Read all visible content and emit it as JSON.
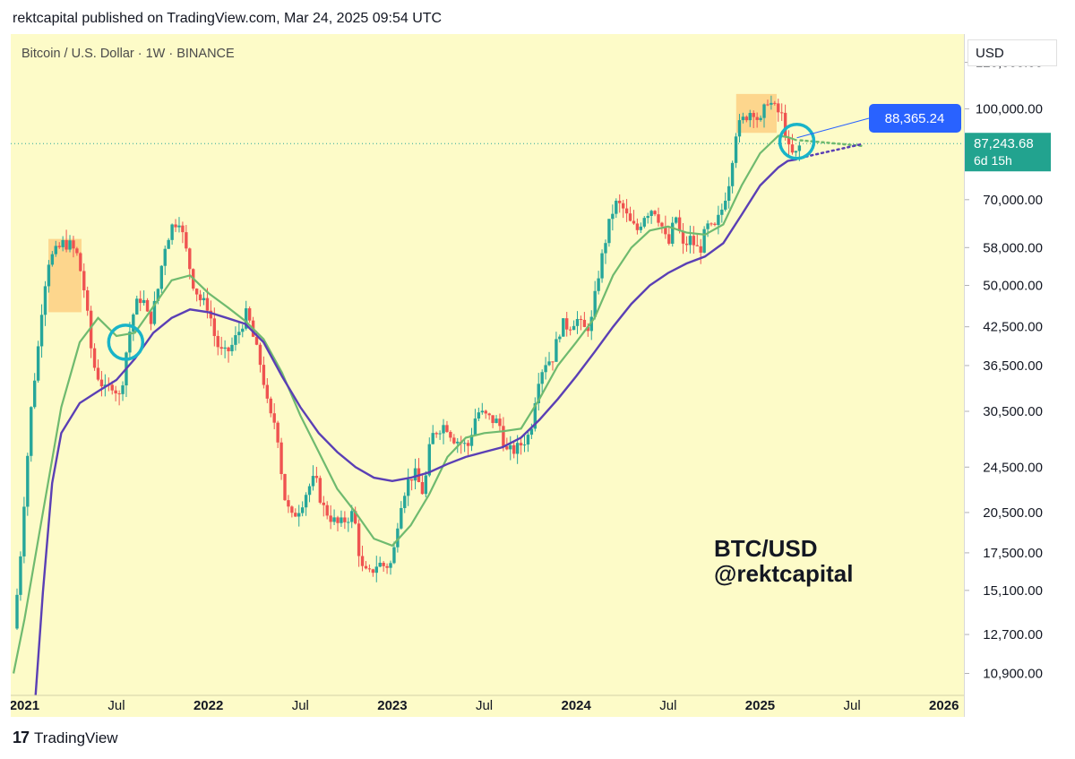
{
  "header": {
    "published": "rektcapital published on TradingView.com, Mar 24, 2025 09:54 UTC"
  },
  "symbol_info": "Bitcoin / U.S. Dollar · 1W · BINANCE",
  "watermark": {
    "line1": "BTC/USD",
    "line2": "@rektcapital"
  },
  "currency_button": "USD",
  "footer": {
    "brand": "TradingView",
    "logo": "17"
  },
  "colors": {
    "background": "#fdfbc8",
    "up": "#26a69a",
    "down": "#ef5350",
    "ma_green": "#6fba6f",
    "ma_purple": "#5a3fb5",
    "highlight_box": "#fcc97a",
    "circle": "#19b4c8",
    "target_label": "#2962ff",
    "price_label": "#22a38f"
  },
  "chart_data": {
    "type": "candlestick",
    "title": "Bitcoin / U.S. Dollar · 1W · BINANCE",
    "y_scale": "log",
    "ylim": [
      10000,
      125000
    ],
    "x_ticks": [
      {
        "label": "2021",
        "bold": true,
        "t": 2021.0
      },
      {
        "label": "Jul",
        "bold": false,
        "t": 2021.5
      },
      {
        "label": "2022",
        "bold": true,
        "t": 2022.0
      },
      {
        "label": "Jul",
        "bold": false,
        "t": 2022.5
      },
      {
        "label": "2023",
        "bold": true,
        "t": 2023.0
      },
      {
        "label": "Jul",
        "bold": false,
        "t": 2023.5
      },
      {
        "label": "2024",
        "bold": true,
        "t": 2024.0
      },
      {
        "label": "Jul",
        "bold": false,
        "t": 2024.5
      },
      {
        "label": "2025",
        "bold": true,
        "t": 2025.0
      },
      {
        "label": "Jul",
        "bold": false,
        "t": 2025.5
      },
      {
        "label": "2026",
        "bold": true,
        "t": 2026.0
      }
    ],
    "y_ticks": [
      {
        "label": "120,000.00",
        "v": 120000
      },
      {
        "label": "100,000.00",
        "v": 100000
      },
      {
        "label": "70,000.00",
        "v": 70000
      },
      {
        "label": "58,000.00",
        "v": 58000
      },
      {
        "label": "50,000.00",
        "v": 50000
      },
      {
        "label": "42,500.00",
        "v": 42500
      },
      {
        "label": "36,500.00",
        "v": 36500
      },
      {
        "label": "30,500.00",
        "v": 30500
      },
      {
        "label": "24,500.00",
        "v": 24500
      },
      {
        "label": "20,500.00",
        "v": 20500
      },
      {
        "label": "17,500.00",
        "v": 17500
      },
      {
        "label": "15,100.00",
        "v": 15100
      },
      {
        "label": "12,700.00",
        "v": 12700
      },
      {
        "label": "10,900.00",
        "v": 10900
      }
    ],
    "price_path": [
      [
        2020.94,
        13000
      ],
      [
        2020.97,
        16000
      ],
      [
        2021.0,
        22000
      ],
      [
        2021.04,
        32000
      ],
      [
        2021.07,
        38000
      ],
      [
        2021.1,
        48000
      ],
      [
        2021.13,
        55000
      ],
      [
        2021.17,
        57000
      ],
      [
        2021.21,
        59000
      ],
      [
        2021.25,
        58500
      ],
      [
        2021.29,
        56000
      ],
      [
        2021.33,
        48000
      ],
      [
        2021.37,
        37000
      ],
      [
        2021.4,
        35000
      ],
      [
        2021.44,
        33000
      ],
      [
        2021.48,
        34000
      ],
      [
        2021.52,
        32000
      ],
      [
        2021.56,
        40000
      ],
      [
        2021.6,
        46000
      ],
      [
        2021.64,
        48000
      ],
      [
        2021.68,
        43000
      ],
      [
        2021.72,
        48000
      ],
      [
        2021.76,
        58000
      ],
      [
        2021.8,
        63000
      ],
      [
        2021.84,
        65000
      ],
      [
        2021.88,
        57000
      ],
      [
        2021.92,
        50000
      ],
      [
        2021.96,
        47000
      ],
      [
        2022.0,
        46000
      ],
      [
        2022.04,
        40000
      ],
      [
        2022.08,
        38000
      ],
      [
        2022.12,
        39000
      ],
      [
        2022.17,
        42000
      ],
      [
        2022.21,
        45000
      ],
      [
        2022.25,
        40000
      ],
      [
        2022.29,
        36000
      ],
      [
        2022.33,
        30000
      ],
      [
        2022.37,
        29000
      ],
      [
        2022.41,
        22000
      ],
      [
        2022.45,
        20000
      ],
      [
        2022.5,
        21000
      ],
      [
        2022.54,
        22500
      ],
      [
        2022.58,
        23500
      ],
      [
        2022.62,
        21000
      ],
      [
        2022.67,
        20000
      ],
      [
        2022.71,
        19500
      ],
      [
        2022.75,
        20000
      ],
      [
        2022.79,
        20500
      ],
      [
        2022.83,
        16500
      ],
      [
        2022.87,
        16000
      ],
      [
        2022.92,
        16800
      ],
      [
        2022.96,
        16600
      ],
      [
        2023.0,
        16800
      ],
      [
        2023.04,
        21000
      ],
      [
        2023.08,
        23000
      ],
      [
        2023.12,
        24000
      ],
      [
        2023.17,
        22000
      ],
      [
        2023.21,
        27500
      ],
      [
        2023.25,
        28500
      ],
      [
        2023.29,
        29000
      ],
      [
        2023.33,
        27500
      ],
      [
        2023.37,
        27000
      ],
      [
        2023.41,
        26500
      ],
      [
        2023.46,
        30500
      ],
      [
        2023.5,
        30000
      ],
      [
        2023.54,
        29500
      ],
      [
        2023.58,
        29200
      ],
      [
        2023.62,
        26000
      ],
      [
        2023.67,
        26200
      ],
      [
        2023.71,
        27000
      ],
      [
        2023.75,
        28000
      ],
      [
        2023.79,
        34500
      ],
      [
        2023.83,
        37000
      ],
      [
        2023.87,
        37500
      ],
      [
        2023.92,
        43000
      ],
      [
        2023.96,
        42500
      ],
      [
        2024.0,
        44000
      ],
      [
        2024.04,
        42000
      ],
      [
        2024.08,
        43000
      ],
      [
        2024.12,
        52000
      ],
      [
        2024.17,
        62000
      ],
      [
        2024.21,
        69000
      ],
      [
        2024.25,
        68000
      ],
      [
        2024.29,
        64000
      ],
      [
        2024.33,
        62000
      ],
      [
        2024.37,
        66000
      ],
      [
        2024.42,
        68000
      ],
      [
        2024.46,
        64000
      ],
      [
        2024.5,
        58000
      ],
      [
        2024.54,
        66000
      ],
      [
        2024.58,
        58000
      ],
      [
        2024.62,
        60000
      ],
      [
        2024.67,
        57000
      ],
      [
        2024.71,
        63000
      ],
      [
        2024.75,
        62000
      ],
      [
        2024.79,
        67000
      ],
      [
        2024.83,
        75000
      ],
      [
        2024.87,
        92000
      ],
      [
        2024.92,
        97000
      ],
      [
        2024.96,
        100000
      ],
      [
        2025.0,
        94000
      ],
      [
        2025.04,
        104000
      ],
      [
        2025.08,
        100000
      ],
      [
        2025.12,
        97000
      ],
      [
        2025.16,
        84000
      ],
      [
        2025.19,
        83000
      ],
      [
        2025.21,
        86000
      ],
      [
        2025.23,
        87243
      ]
    ],
    "ma_green_path": [
      [
        2020.94,
        10900
      ],
      [
        2021.0,
        13500
      ],
      [
        2021.1,
        20500
      ],
      [
        2021.2,
        31000
      ],
      [
        2021.3,
        40000
      ],
      [
        2021.4,
        44000
      ],
      [
        2021.5,
        41000
      ],
      [
        2021.6,
        41500
      ],
      [
        2021.7,
        46000
      ],
      [
        2021.8,
        51000
      ],
      [
        2021.9,
        52000
      ],
      [
        2022.0,
        48500
      ],
      [
        2022.1,
        46000
      ],
      [
        2022.2,
        43500
      ],
      [
        2022.3,
        40500
      ],
      [
        2022.4,
        35500
      ],
      [
        2022.5,
        30000
      ],
      [
        2022.6,
        26000
      ],
      [
        2022.7,
        22500
      ],
      [
        2022.8,
        20500
      ],
      [
        2022.9,
        18500
      ],
      [
        2023.0,
        18000
      ],
      [
        2023.1,
        19500
      ],
      [
        2023.2,
        22000
      ],
      [
        2023.3,
        25500
      ],
      [
        2023.4,
        27500
      ],
      [
        2023.5,
        28000
      ],
      [
        2023.6,
        28200
      ],
      [
        2023.7,
        28500
      ],
      [
        2023.8,
        32000
      ],
      [
        2023.9,
        36500
      ],
      [
        2024.0,
        40000
      ],
      [
        2024.1,
        44000
      ],
      [
        2024.2,
        52000
      ],
      [
        2024.3,
        58000
      ],
      [
        2024.4,
        62000
      ],
      [
        2024.5,
        63000
      ],
      [
        2024.6,
        61500
      ],
      [
        2024.7,
        61000
      ],
      [
        2024.8,
        63500
      ],
      [
        2024.9,
        74000
      ],
      [
        2025.0,
        84000
      ],
      [
        2025.1,
        90000
      ],
      [
        2025.15,
        89500
      ],
      [
        2025.2,
        88365
      ]
    ],
    "ma_purple_path": [
      [
        2021.06,
        10000
      ],
      [
        2021.1,
        15000
      ],
      [
        2021.15,
        23000
      ],
      [
        2021.2,
        28000
      ],
      [
        2021.3,
        31500
      ],
      [
        2021.4,
        33000
      ],
      [
        2021.5,
        34500
      ],
      [
        2021.6,
        37500
      ],
      [
        2021.7,
        41500
      ],
      [
        2021.8,
        44000
      ],
      [
        2021.9,
        45500
      ],
      [
        2022.0,
        45000
      ],
      [
        2022.1,
        44000
      ],
      [
        2022.2,
        43000
      ],
      [
        2022.3,
        40000
      ],
      [
        2022.4,
        35000
      ],
      [
        2022.5,
        31000
      ],
      [
        2022.6,
        28000
      ],
      [
        2022.7,
        26000
      ],
      [
        2022.8,
        24500
      ],
      [
        2022.9,
        23500
      ],
      [
        2023.0,
        23200
      ],
      [
        2023.1,
        23500
      ],
      [
        2023.2,
        24000
      ],
      [
        2023.3,
        24800
      ],
      [
        2023.4,
        25500
      ],
      [
        2023.5,
        26000
      ],
      [
        2023.6,
        26500
      ],
      [
        2023.7,
        27500
      ],
      [
        2023.8,
        29500
      ],
      [
        2023.9,
        32000
      ],
      [
        2024.0,
        35000
      ],
      [
        2024.1,
        38500
      ],
      [
        2024.2,
        42500
      ],
      [
        2024.3,
        46500
      ],
      [
        2024.4,
        50000
      ],
      [
        2024.5,
        52500
      ],
      [
        2024.6,
        54500
      ],
      [
        2024.7,
        56000
      ],
      [
        2024.8,
        59000
      ],
      [
        2024.9,
        66000
      ],
      [
        2025.0,
        74000
      ],
      [
        2025.1,
        79500
      ],
      [
        2025.15,
        81500
      ],
      [
        2025.2,
        82000
      ]
    ],
    "projection_green": [
      [
        2025.22,
        88365
      ],
      [
        2025.55,
        86500
      ]
    ],
    "projection_purple": [
      [
        2025.22,
        82500
      ],
      [
        2025.55,
        87000
      ]
    ],
    "highlight_zones": [
      {
        "t0": 2021.13,
        "t1": 2021.31,
        "v0": 45000,
        "v1": 60000
      },
      {
        "t0": 2024.87,
        "t1": 2025.09,
        "v0": 91000,
        "v1": 106000
      }
    ],
    "circles": [
      {
        "t": 2021.55,
        "v": 40000
      },
      {
        "t": 2025.2,
        "v": 88000
      }
    ],
    "current_price_line": 87243.68,
    "current_price": {
      "value": "87,243.68",
      "countdown": "6d 15h"
    },
    "target_label": {
      "value": "88,365.24",
      "v": 88365.24
    }
  }
}
